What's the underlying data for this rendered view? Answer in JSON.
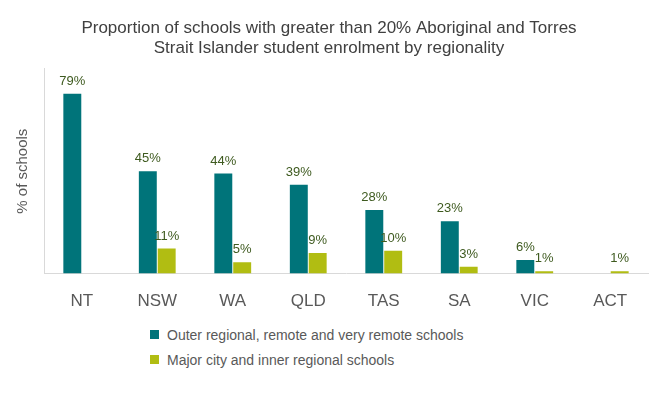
{
  "chart_data": {
    "type": "bar",
    "title": [
      "Proportion of schools with greater than 20% Aboriginal and Torres",
      "Strait Islander student enrolment by regionality"
    ],
    "y_label": "% of schools",
    "categories": [
      "NT",
      "NSW",
      "WA",
      "QLD",
      "TAS",
      "SA",
      "VIC",
      "ACT"
    ],
    "series": [
      {
        "name": "Outer regional, remote and very remote schools",
        "color": "#00747a",
        "values": [
          79,
          45,
          44,
          39,
          28,
          23,
          6,
          null
        ],
        "value_labels": [
          "79%",
          "45%",
          "44%",
          "39%",
          "28%",
          "23%",
          "6%",
          null
        ]
      },
      {
        "name": "Major city and inner regional schools",
        "color": "#b1bd12",
        "values": [
          null,
          11,
          5,
          9,
          10,
          3,
          1,
          1
        ],
        "value_labels": [
          null,
          "11%",
          "5%",
          "9%",
          "10%",
          "3%",
          "1%",
          "1%"
        ]
      }
    ],
    "ylim": [
      0,
      90
    ],
    "yticks": [],
    "grid": false,
    "legend": "bottom",
    "data_labels": true,
    "tick_labels": "x"
  }
}
